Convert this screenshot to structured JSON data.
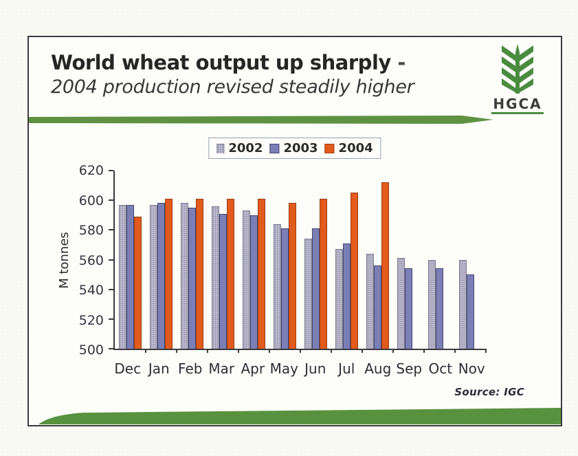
{
  "slide": {
    "title_bold": "World wheat output up sharply",
    "title_dash": " -",
    "subtitle": "2004 production revised steadily higher",
    "logo": {
      "text": "HGCA",
      "green": "#4a8c3f"
    }
  },
  "colors": {
    "accent_green": "#5e9242",
    "frame_border": "#3c3c40"
  },
  "chart_data": {
    "type": "bar",
    "title": "World wheat output up sharply - 2004 production revised steadily higher",
    "xlabel": "",
    "ylabel": "M tonnes",
    "ylim": [
      500,
      620
    ],
    "yticks": [
      620,
      600,
      580,
      560,
      540,
      520,
      500
    ],
    "grid": false,
    "legend_position": "top-center",
    "categories": [
      "Dec",
      "Jan",
      "Feb",
      "Mar",
      "Apr",
      "May",
      "Jun",
      "Jul",
      "Aug",
      "Sep",
      "Oct",
      "Nov"
    ],
    "series": [
      {
        "name": "2002",
        "color": "#ccc9d9",
        "border": "#76768a",
        "texture": "dots",
        "values": [
          597,
          597,
          598,
          596,
          593,
          584,
          574,
          567,
          564,
          561,
          560,
          560
        ]
      },
      {
        "name": "2003",
        "color": "#7b7fb6",
        "border": "#45456e",
        "values": [
          597,
          598,
          595,
          591,
          590,
          581,
          581,
          571,
          556,
          554,
          554,
          550
        ]
      },
      {
        "name": "2004",
        "color": "#e25a1c",
        "border": "#9a3c10",
        "values": [
          589,
          601,
          601,
          601,
          601,
          598,
          601,
          605,
          612,
          null,
          null,
          null
        ]
      }
    ],
    "source": "Source: IGC"
  }
}
